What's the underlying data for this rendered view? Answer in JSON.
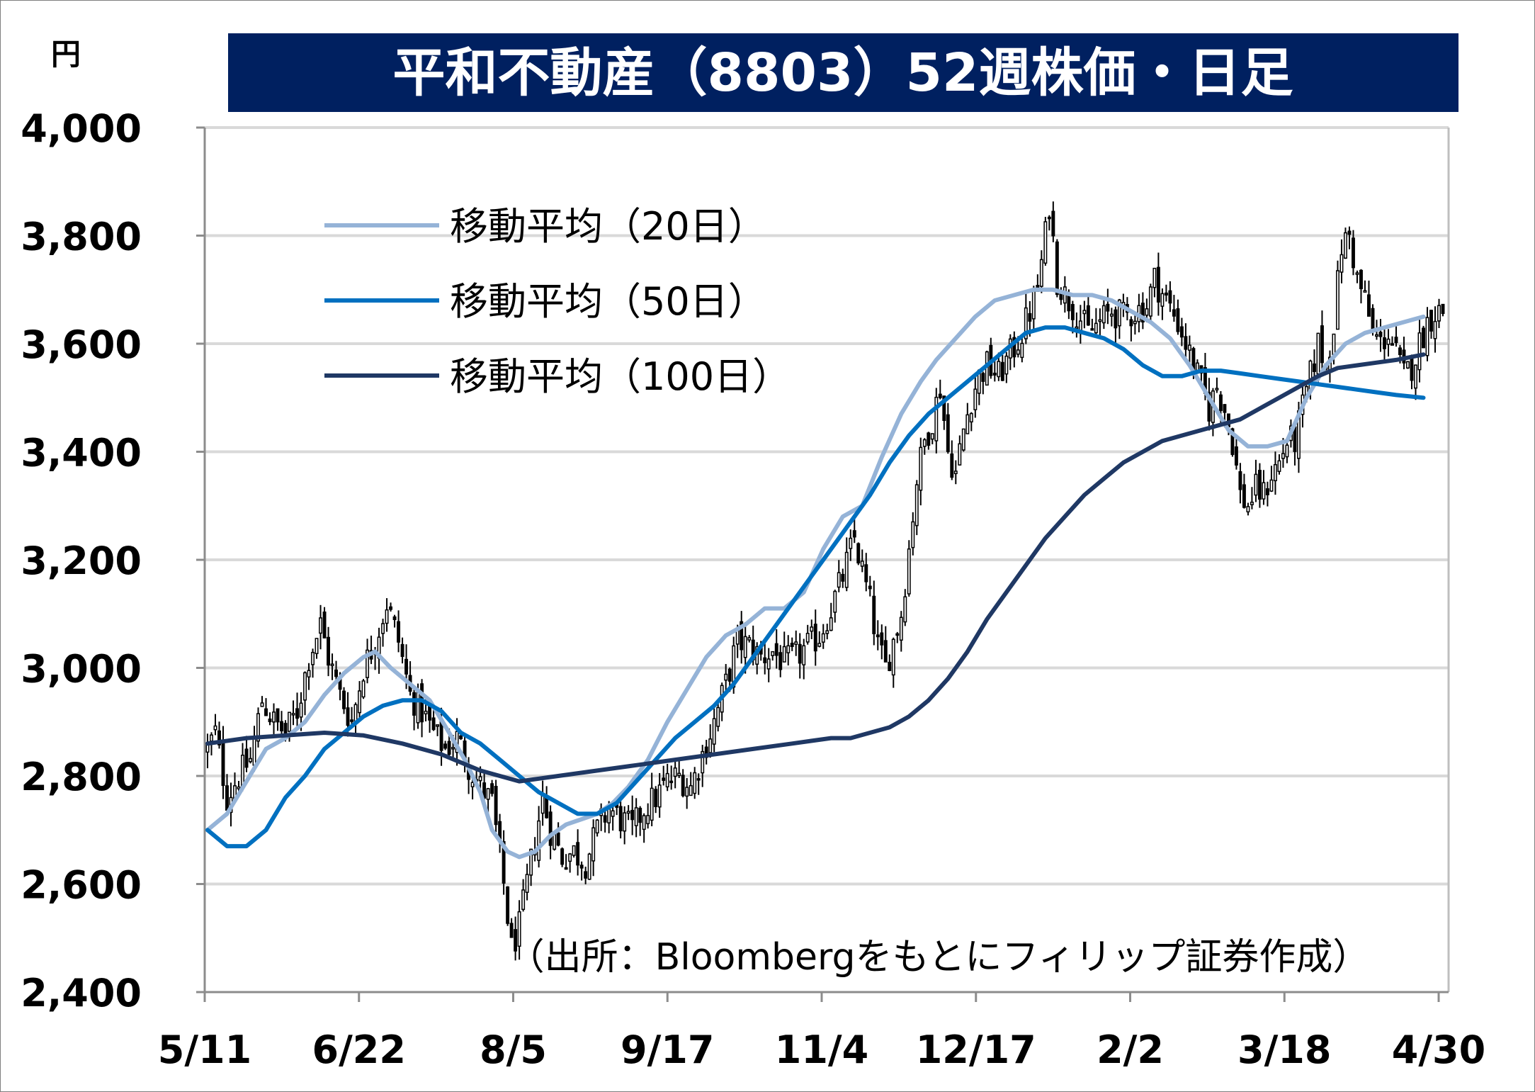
{
  "chart_data": {
    "type": "candlestick",
    "title": "平和不動産（8803）52週株価・日足",
    "ylabel": "円",
    "source": "（出所：Bloombergをもとにフィリップ証券作成）",
    "ylim": [
      2400,
      4000
    ],
    "yticks": [
      4000,
      3800,
      3600,
      3400,
      3200,
      3000,
      2800,
      2600,
      2400
    ],
    "ytick_labels": [
      "4,000",
      "3,800",
      "3,600",
      "3,400",
      "3,200",
      "3,000",
      "2,800",
      "2,600",
      "2,400"
    ],
    "xticks": [
      "5/11",
      "6/22",
      "8/5",
      "9/17",
      "11/4",
      "12/17",
      "2/2",
      "3/18",
      "4/30"
    ],
    "grid": true,
    "legend_position": "top-left",
    "close_anchors": [
      [
        0,
        2850
      ],
      [
        2,
        2880
      ],
      [
        5,
        2760
      ],
      [
        8,
        2800
      ],
      [
        11,
        2830
      ],
      [
        14,
        2940
      ],
      [
        17,
        2900
      ],
      [
        20,
        2880
      ],
      [
        23,
        2920
      ],
      [
        26,
        3020
      ],
      [
        29,
        3080
      ],
      [
        31,
        3020
      ],
      [
        34,
        2950
      ],
      [
        37,
        2900
      ],
      [
        40,
        3000
      ],
      [
        43,
        3050
      ],
      [
        46,
        3120
      ],
      [
        49,
        3050
      ],
      [
        52,
        2950
      ],
      [
        55,
        2920
      ],
      [
        58,
        2880
      ],
      [
        61,
        2850
      ],
      [
        64,
        2870
      ],
      [
        67,
        2820
      ],
      [
        70,
        2780
      ],
      [
        73,
        2750
      ],
      [
        76,
        2600
      ],
      [
        78,
        2480
      ],
      [
        80,
        2520
      ],
      [
        82,
        2600
      ],
      [
        84,
        2680
      ],
      [
        86,
        2760
      ],
      [
        88,
        2700
      ],
      [
        91,
        2650
      ],
      [
        94,
        2660
      ],
      [
        97,
        2640
      ],
      [
        100,
        2700
      ],
      [
        103,
        2740
      ],
      [
        106,
        2720
      ],
      [
        109,
        2700
      ],
      [
        112,
        2740
      ],
      [
        115,
        2760
      ],
      [
        118,
        2790
      ],
      [
        121,
        2800
      ],
      [
        124,
        2780
      ],
      [
        127,
        2840
      ],
      [
        130,
        2900
      ],
      [
        133,
        2970
      ],
      [
        136,
        3050
      ],
      [
        139,
        3040
      ],
      [
        142,
        3020
      ],
      [
        145,
        3030
      ],
      [
        148,
        3010
      ],
      [
        151,
        3020
      ],
      [
        154,
        3040
      ],
      [
        157,
        3060
      ],
      [
        160,
        3110
      ],
      [
        163,
        3170
      ],
      [
        166,
        3240
      ],
      [
        168,
        3180
      ],
      [
        170,
        3120
      ],
      [
        172,
        3040
      ],
      [
        174,
        3000
      ],
      [
        176,
        3050
      ],
      [
        178,
        3100
      ],
      [
        180,
        3220
      ],
      [
        182,
        3350
      ],
      [
        184,
        3420
      ],
      [
        186,
        3460
      ],
      [
        188,
        3520
      ],
      [
        190,
        3400
      ],
      [
        192,
        3360
      ],
      [
        194,
        3440
      ],
      [
        196,
        3500
      ],
      [
        198,
        3540
      ],
      [
        200,
        3560
      ],
      [
        203,
        3540
      ],
      [
        206,
        3580
      ],
      [
        209,
        3620
      ],
      [
        211,
        3660
      ],
      [
        213,
        3700
      ],
      [
        215,
        3800
      ],
      [
        216,
        3860
      ],
      [
        218,
        3720
      ],
      [
        220,
        3690
      ],
      [
        223,
        3660
      ],
      [
        226,
        3620
      ],
      [
        229,
        3640
      ],
      [
        232,
        3660
      ],
      [
        235,
        3650
      ],
      [
        238,
        3660
      ],
      [
        241,
        3670
      ],
      [
        243,
        3720
      ],
      [
        246,
        3680
      ],
      [
        249,
        3640
      ],
      [
        251,
        3600
      ],
      [
        253,
        3560
      ],
      [
        255,
        3520
      ],
      [
        257,
        3480
      ],
      [
        259,
        3520
      ],
      [
        261,
        3480
      ],
      [
        263,
        3420
      ],
      [
        265,
        3320
      ],
      [
        267,
        3300
      ],
      [
        269,
        3330
      ],
      [
        271,
        3320
      ],
      [
        273,
        3360
      ],
      [
        275,
        3380
      ],
      [
        277,
        3420
      ],
      [
        279,
        3420
      ],
      [
        281,
        3480
      ],
      [
        283,
        3540
      ],
      [
        285,
        3600
      ],
      [
        287,
        3560
      ],
      [
        289,
        3640
      ],
      [
        291,
        3780
      ],
      [
        293,
        3800
      ],
      [
        295,
        3720
      ],
      [
        297,
        3680
      ],
      [
        299,
        3620
      ],
      [
        301,
        3600
      ],
      [
        303,
        3620
      ],
      [
        305,
        3580
      ],
      [
        307,
        3540
      ],
      [
        309,
        3560
      ],
      [
        311,
        3600
      ],
      [
        313,
        3640
      ],
      [
        315,
        3660
      ],
      [
        317,
        3660
      ]
    ],
    "series": [
      {
        "name": "移動平均（20日）",
        "color": "#95B3D7",
        "values": [
          [
            0,
            2700
          ],
          [
            5,
            2730
          ],
          [
            10,
            2790
          ],
          [
            15,
            2850
          ],
          [
            20,
            2870
          ],
          [
            25,
            2900
          ],
          [
            30,
            2950
          ],
          [
            35,
            2990
          ],
          [
            40,
            3020
          ],
          [
            43,
            3030
          ],
          [
            47,
            3000
          ],
          [
            52,
            2970
          ],
          [
            57,
            2940
          ],
          [
            62,
            2880
          ],
          [
            66,
            2830
          ],
          [
            70,
            2770
          ],
          [
            73,
            2700
          ],
          [
            77,
            2660
          ],
          [
            80,
            2650
          ],
          [
            84,
            2660
          ],
          [
            88,
            2690
          ],
          [
            92,
            2710
          ],
          [
            96,
            2720
          ],
          [
            100,
            2730
          ],
          [
            104,
            2750
          ],
          [
            108,
            2780
          ],
          [
            113,
            2830
          ],
          [
            118,
            2900
          ],
          [
            123,
            2960
          ],
          [
            128,
            3020
          ],
          [
            133,
            3060
          ],
          [
            138,
            3080
          ],
          [
            143,
            3110
          ],
          [
            148,
            3110
          ],
          [
            153,
            3140
          ],
          [
            158,
            3220
          ],
          [
            163,
            3280
          ],
          [
            168,
            3300
          ],
          [
            173,
            3390
          ],
          [
            178,
            3470
          ],
          [
            183,
            3530
          ],
          [
            187,
            3570
          ],
          [
            192,
            3610
          ],
          [
            197,
            3650
          ],
          [
            202,
            3680
          ],
          [
            207,
            3690
          ],
          [
            212,
            3700
          ],
          [
            217,
            3700
          ],
          [
            222,
            3690
          ],
          [
            227,
            3690
          ],
          [
            232,
            3680
          ],
          [
            237,
            3660
          ],
          [
            242,
            3640
          ],
          [
            247,
            3610
          ],
          [
            252,
            3560
          ],
          [
            257,
            3500
          ],
          [
            262,
            3440
          ],
          [
            267,
            3410
          ],
          [
            272,
            3410
          ],
          [
            277,
            3420
          ],
          [
            282,
            3500
          ],
          [
            287,
            3560
          ],
          [
            292,
            3600
          ],
          [
            297,
            3620
          ],
          [
            302,
            3630
          ],
          [
            307,
            3640
          ],
          [
            312,
            3650
          ]
        ]
      },
      {
        "name": "移動平均（50日）",
        "color": "#0070C0",
        "values": [
          [
            0,
            2700
          ],
          [
            5,
            2670
          ],
          [
            10,
            2670
          ],
          [
            15,
            2700
          ],
          [
            20,
            2760
          ],
          [
            25,
            2800
          ],
          [
            30,
            2850
          ],
          [
            35,
            2880
          ],
          [
            40,
            2910
          ],
          [
            45,
            2930
          ],
          [
            50,
            2940
          ],
          [
            55,
            2940
          ],
          [
            60,
            2920
          ],
          [
            65,
            2880
          ],
          [
            70,
            2860
          ],
          [
            75,
            2830
          ],
          [
            80,
            2800
          ],
          [
            85,
            2770
          ],
          [
            90,
            2750
          ],
          [
            95,
            2730
          ],
          [
            100,
            2730
          ],
          [
            105,
            2750
          ],
          [
            110,
            2790
          ],
          [
            115,
            2830
          ],
          [
            120,
            2870
          ],
          [
            125,
            2900
          ],
          [
            130,
            2930
          ],
          [
            135,
            2970
          ],
          [
            140,
            3020
          ],
          [
            145,
            3070
          ],
          [
            150,
            3120
          ],
          [
            155,
            3170
          ],
          [
            160,
            3220
          ],
          [
            165,
            3270
          ],
          [
            170,
            3320
          ],
          [
            175,
            3380
          ],
          [
            180,
            3430
          ],
          [
            185,
            3470
          ],
          [
            190,
            3500
          ],
          [
            195,
            3530
          ],
          [
            200,
            3560
          ],
          [
            205,
            3590
          ],
          [
            210,
            3620
          ],
          [
            215,
            3630
          ],
          [
            220,
            3630
          ],
          [
            225,
            3620
          ],
          [
            230,
            3610
          ],
          [
            235,
            3590
          ],
          [
            240,
            3560
          ],
          [
            245,
            3540
          ],
          [
            250,
            3540
          ],
          [
            255,
            3550
          ],
          [
            260,
            3550
          ],
          [
            265,
            3545
          ],
          [
            270,
            3540
          ],
          [
            275,
            3535
          ],
          [
            280,
            3530
          ],
          [
            285,
            3525
          ],
          [
            290,
            3520
          ],
          [
            295,
            3515
          ],
          [
            300,
            3510
          ],
          [
            305,
            3505
          ],
          [
            312,
            3500
          ]
        ]
      },
      {
        "name": "移動平均（100日）",
        "color": "#1F3864",
        "values": [
          [
            0,
            2860
          ],
          [
            10,
            2870
          ],
          [
            20,
            2875
          ],
          [
            30,
            2880
          ],
          [
            40,
            2875
          ],
          [
            50,
            2860
          ],
          [
            60,
            2840
          ],
          [
            70,
            2810
          ],
          [
            80,
            2790
          ],
          [
            90,
            2800
          ],
          [
            100,
            2810
          ],
          [
            110,
            2820
          ],
          [
            120,
            2830
          ],
          [
            130,
            2840
          ],
          [
            140,
            2850
          ],
          [
            150,
            2860
          ],
          [
            160,
            2870
          ],
          [
            165,
            2870
          ],
          [
            170,
            2880
          ],
          [
            175,
            2890
          ],
          [
            180,
            2910
          ],
          [
            185,
            2940
          ],
          [
            190,
            2980
          ],
          [
            195,
            3030
          ],
          [
            200,
            3090
          ],
          [
            205,
            3140
          ],
          [
            210,
            3190
          ],
          [
            215,
            3240
          ],
          [
            220,
            3280
          ],
          [
            225,
            3320
          ],
          [
            230,
            3350
          ],
          [
            235,
            3380
          ],
          [
            240,
            3400
          ],
          [
            245,
            3420
          ],
          [
            250,
            3430
          ],
          [
            255,
            3440
          ],
          [
            260,
            3450
          ],
          [
            265,
            3460
          ],
          [
            270,
            3480
          ],
          [
            275,
            3500
          ],
          [
            280,
            3520
          ],
          [
            285,
            3540
          ],
          [
            290,
            3555
          ],
          [
            295,
            3560
          ],
          [
            300,
            3565
          ],
          [
            305,
            3570
          ],
          [
            312,
            3580
          ]
        ]
      }
    ]
  }
}
